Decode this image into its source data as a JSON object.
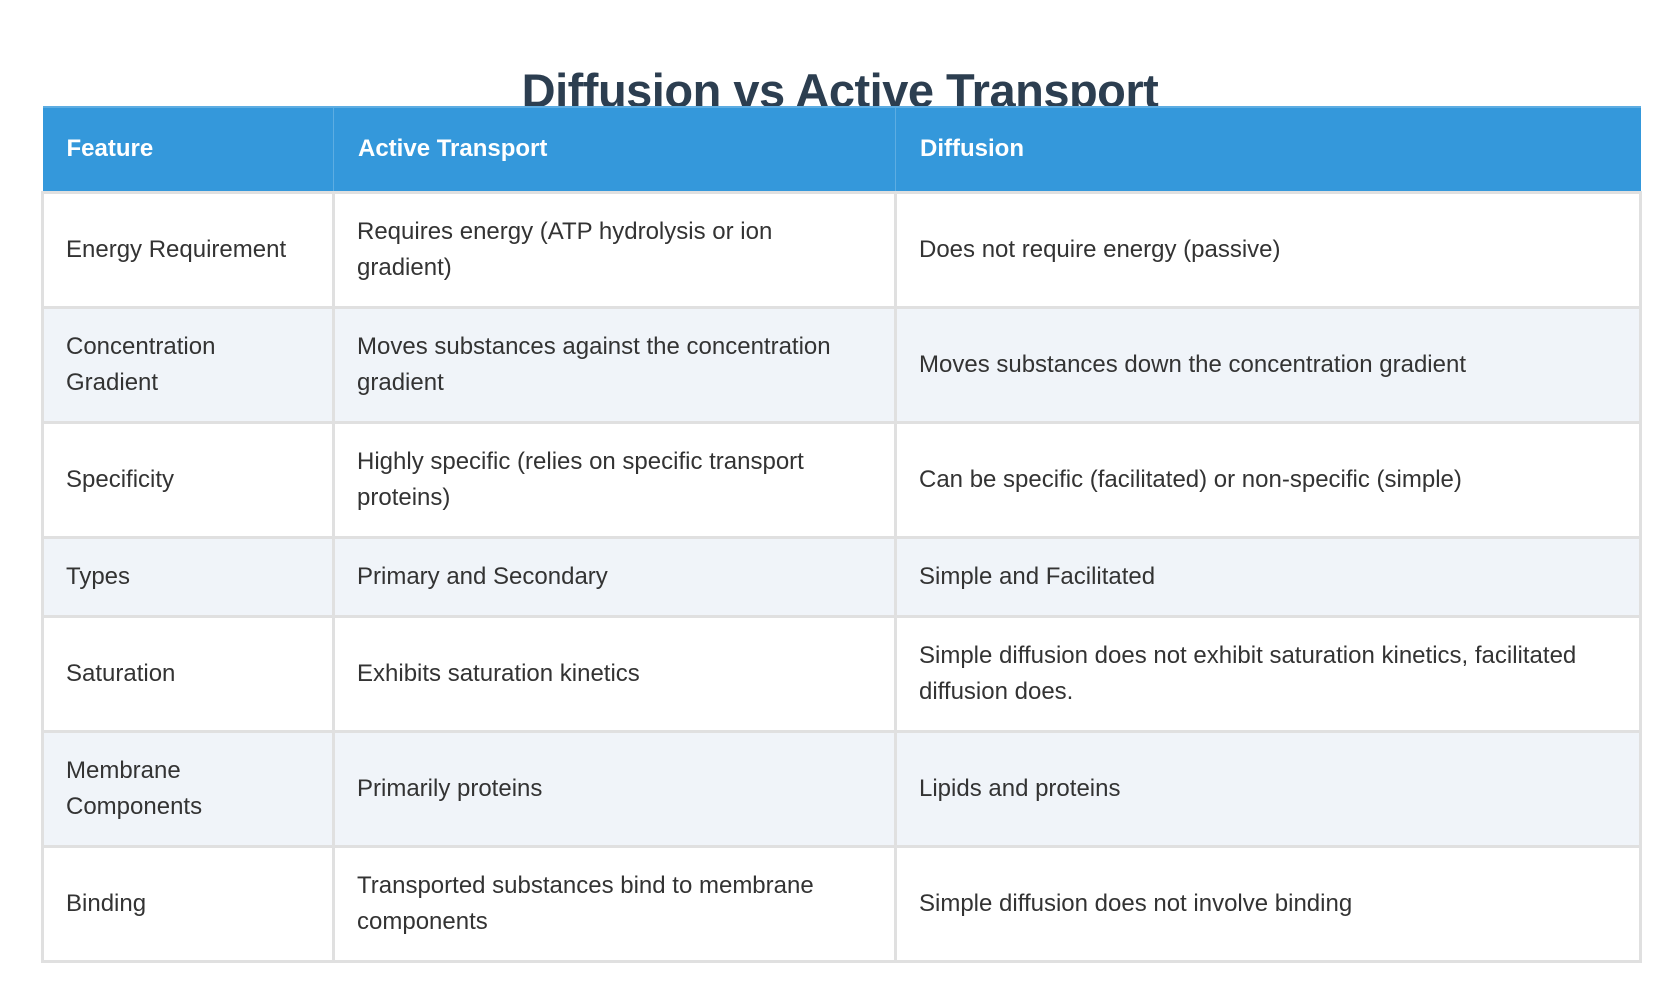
{
  "title": "Diffusion vs Active Transport",
  "colors": {
    "title": "#2c3e50",
    "header_bg": "#3498db",
    "header_text": "#ffffff",
    "row_alt_bg": "#f0f4f9",
    "row_bg": "#ffffff",
    "border": "#e0e0e0",
    "body_text": "#333333"
  },
  "table": {
    "headers": [
      "Feature",
      "Active Transport",
      "Diffusion"
    ],
    "rows": [
      {
        "feature": "Energy Requirement",
        "active_transport": "Requires energy (ATP hydrolysis or ion gradient)",
        "diffusion": "Does not require energy (passive)"
      },
      {
        "feature": "Concentration Gradient",
        "active_transport": "Moves substances against the concentration gradient",
        "diffusion": "Moves substances down the concentration gradient"
      },
      {
        "feature": "Specificity",
        "active_transport": "Highly specific (relies on specific transport proteins)",
        "diffusion": "Can be specific (facilitated) or non-specific (simple)"
      },
      {
        "feature": "Types",
        "active_transport": "Primary and Secondary",
        "diffusion": "Simple and Facilitated"
      },
      {
        "feature": "Saturation",
        "active_transport": "Exhibits saturation kinetics",
        "diffusion": "Simple diffusion does not exhibit saturation kinetics, facilitated diffusion does."
      },
      {
        "feature": "Membrane Components",
        "active_transport": "Primarily proteins",
        "diffusion": "Lipids and proteins"
      },
      {
        "feature": "Binding",
        "active_transport": "Transported substances bind to membrane components",
        "diffusion": "Simple diffusion does not involve binding"
      }
    ]
  }
}
